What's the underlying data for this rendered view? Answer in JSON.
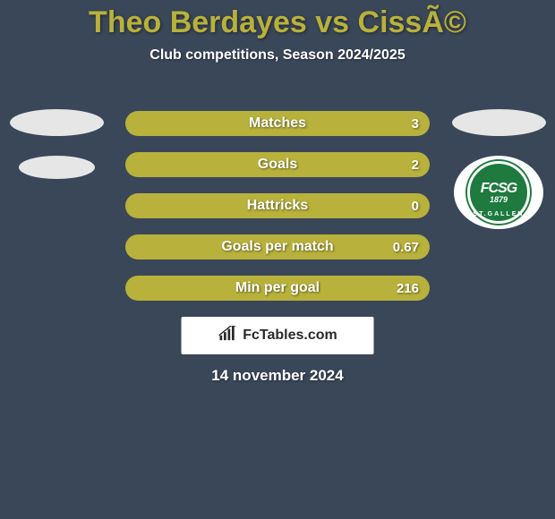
{
  "header": {
    "title": "Theo Berdayes vs CissÃ©",
    "title_color": "#b8b13b",
    "title_fontsize": 34,
    "subtitle": "Club competitions, Season 2024/2025",
    "subtitle_fontsize": 16,
    "subtitle_color": "#ffffff"
  },
  "background_color": "#3a4759",
  "stats": {
    "bar_color": "#b8b13b",
    "bar_text_color": "#ffffff",
    "label_fontsize": 16,
    "value_fontsize": 15,
    "rows": [
      {
        "label": "Matches",
        "value": "3"
      },
      {
        "label": "Goals",
        "value": "2"
      },
      {
        "label": "Hattricks",
        "value": "0"
      },
      {
        "label": "Goals per match",
        "value": "0.67"
      },
      {
        "label": "Min per goal",
        "value": "216"
      }
    ]
  },
  "left_player": {
    "placeholder_shapes": 2,
    "placeholder_color": "#e6e6e6"
  },
  "right_player": {
    "placeholder_shapes": 1,
    "placeholder_color": "#e6e6e6",
    "club": {
      "name_top": "",
      "abbrev": "FCSG",
      "year": "1879",
      "name_bottom": "ST.GALLEN",
      "badge_bg": "#1f7a3f",
      "badge_ring": "#ffffff"
    }
  },
  "attribution": {
    "icon": "bar-chart-icon",
    "text": "FcTables.com",
    "bg": "#ffffff",
    "text_color": "#2a2a2a",
    "fontsize": 16
  },
  "date": {
    "text": "14 november 2024",
    "fontsize": 17,
    "color": "#ffffff"
  }
}
